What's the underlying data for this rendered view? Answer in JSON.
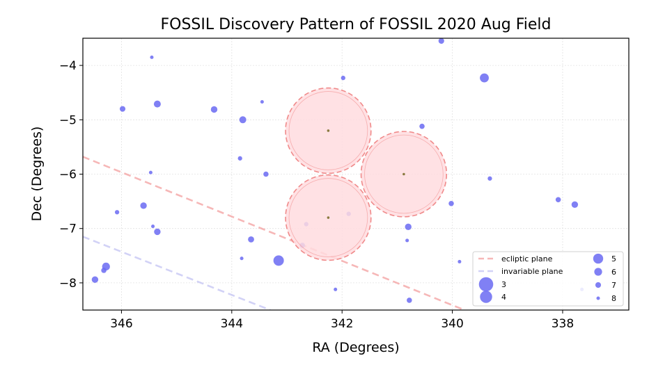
{
  "chart_data": {
    "type": "scatter",
    "title": "FOSSIL Discovery Pattern of FOSSIL 2020 Aug Field",
    "xlabel": "RA (Degrees)",
    "ylabel": "Dec (Degrees)",
    "xlim": [
      346.7,
      336.8
    ],
    "ylim": [
      -8.5,
      -3.5
    ],
    "x_inverted": true,
    "xticks": [
      346,
      344,
      342,
      340,
      338
    ],
    "yticks": [
      -4,
      -5,
      -6,
      -7,
      -8
    ],
    "xtick_labels": [
      "346",
      "344",
      "342",
      "340",
      "338"
    ],
    "ytick_labels": [
      "−4",
      "−5",
      "−6",
      "−7",
      "−8"
    ],
    "grid": true,
    "legend_position": "lower-right",
    "fields": [
      {
        "ra": 342.25,
        "dec": -5.2
      },
      {
        "ra": 340.88,
        "dec": -6.0
      },
      {
        "ra": 342.25,
        "dec": -6.8
      }
    ],
    "lines": [
      {
        "name": "ecliptic plane",
        "color": "#f4a6a6",
        "points": [
          [
            346.7,
            -5.68
          ],
          [
            339.78,
            -8.5
          ]
        ]
      },
      {
        "name": "invariable plane",
        "color": "#c7c7f4",
        "points": [
          [
            346.7,
            -7.15
          ],
          [
            343.3,
            -8.5
          ]
        ]
      }
    ],
    "size_legend": [
      {
        "label": "3",
        "mag": 3
      },
      {
        "label": "4",
        "mag": 4
      },
      {
        "label": "5",
        "mag": 5
      },
      {
        "label": "6",
        "mag": 6
      },
      {
        "label": "7",
        "mag": 7
      },
      {
        "label": "8",
        "mag": 8
      }
    ],
    "points": [
      {
        "ra": 340.2,
        "dec": -3.55,
        "mag": 7
      },
      {
        "ra": 345.45,
        "dec": -3.85,
        "mag": 8
      },
      {
        "ra": 341.98,
        "dec": -4.23,
        "mag": 7.6
      },
      {
        "ra": 339.42,
        "dec": -4.23,
        "mag": 5.5
      },
      {
        "ra": 345.98,
        "dec": -4.8,
        "mag": 7
      },
      {
        "ra": 345.35,
        "dec": -4.71,
        "mag": 6.4
      },
      {
        "ra": 344.32,
        "dec": -4.81,
        "mag": 6.6
      },
      {
        "ra": 343.45,
        "dec": -4.67,
        "mag": 8
      },
      {
        "ra": 343.8,
        "dec": -5.0,
        "mag": 6.4
      },
      {
        "ra": 340.55,
        "dec": -5.12,
        "mag": 7.2
      },
      {
        "ra": 343.85,
        "dec": -5.71,
        "mag": 7.6
      },
      {
        "ra": 345.47,
        "dec": -5.97,
        "mag": 8
      },
      {
        "ra": 343.38,
        "dec": -6.0,
        "mag": 7.2
      },
      {
        "ra": 339.32,
        "dec": -6.08,
        "mag": 7.6
      },
      {
        "ra": 346.08,
        "dec": -6.7,
        "mag": 7.6
      },
      {
        "ra": 345.6,
        "dec": -6.58,
        "mag": 6.6
      },
      {
        "ra": 340.02,
        "dec": -6.54,
        "mag": 7.2
      },
      {
        "ra": 338.08,
        "dec": -6.47,
        "mag": 7.2
      },
      {
        "ra": 337.78,
        "dec": -6.56,
        "mag": 6.6
      },
      {
        "ra": 345.43,
        "dec": -6.96,
        "mag": 8
      },
      {
        "ra": 345.35,
        "dec": -7.06,
        "mag": 6.6
      },
      {
        "ra": 342.65,
        "dec": -6.92,
        "mag": 7.6
      },
      {
        "ra": 341.88,
        "dec": -6.73,
        "mag": 7.6
      },
      {
        "ra": 340.8,
        "dec": -6.97,
        "mag": 6.6
      },
      {
        "ra": 343.65,
        "dec": -7.2,
        "mag": 6.8
      },
      {
        "ra": 340.82,
        "dec": -7.22,
        "mag": 8
      },
      {
        "ra": 342.72,
        "dec": -7.31,
        "mag": 7.2
      },
      {
        "ra": 343.82,
        "dec": -7.55,
        "mag": 8
      },
      {
        "ra": 343.15,
        "dec": -7.59,
        "mag": 4.8
      },
      {
        "ra": 339.87,
        "dec": -7.61,
        "mag": 8
      },
      {
        "ra": 346.28,
        "dec": -7.7,
        "mag": 6
      },
      {
        "ra": 346.32,
        "dec": -7.77,
        "mag": 7.2
      },
      {
        "ra": 346.48,
        "dec": -7.94,
        "mag": 6.6
      },
      {
        "ra": 342.12,
        "dec": -8.12,
        "mag": 8
      },
      {
        "ra": 340.78,
        "dec": -8.32,
        "mag": 7.2
      },
      {
        "ra": 337.65,
        "dec": -8.12,
        "mag": 8
      }
    ]
  },
  "colors": {
    "point": "#6a6af2",
    "field_fill": "#ffdcdf",
    "field_edge": "#f08a8a",
    "field_center": "#8a7a40"
  }
}
